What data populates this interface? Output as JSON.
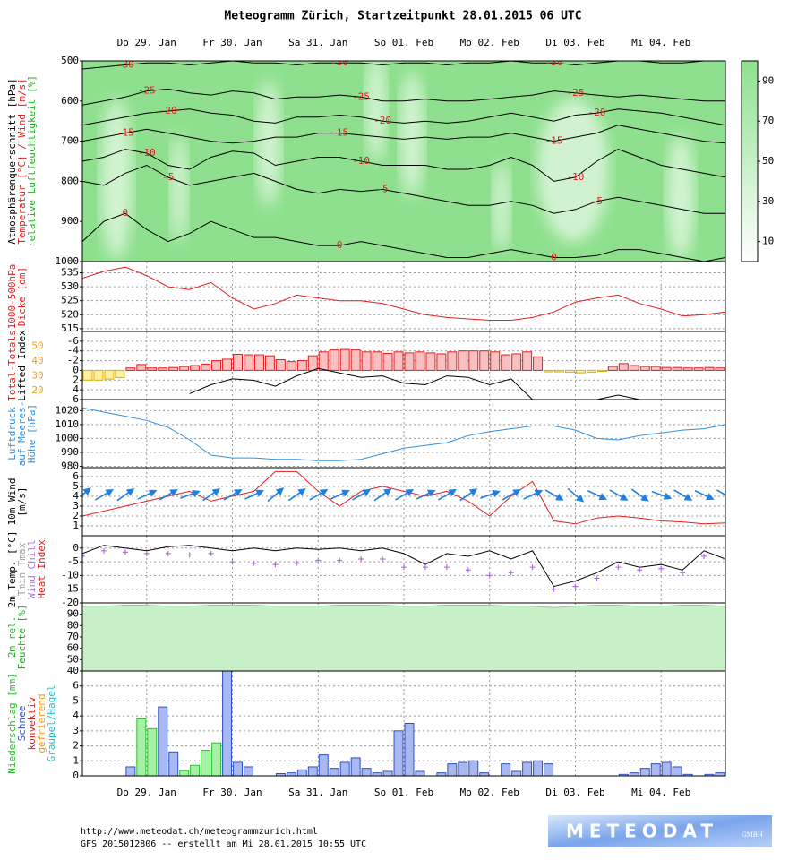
{
  "title": "Meteogramm Zürich, Startzeitpunkt 28.01.2015 06 UTC",
  "footer": {
    "url": "http://www.meteodat.ch/meteogrammzurich.html",
    "info": "GFS 2015012806 -- erstellt am Mi 28.01.2015 10:55 UTC"
  },
  "logo": {
    "text": "METEODAT",
    "sub": "GMBH"
  },
  "time_axis": {
    "xlim": [
      0,
      180
    ],
    "xticks": [
      {
        "value": 18,
        "label": "Do 29. Jan"
      },
      {
        "value": 42,
        "label": "Fr 30. Jan"
      },
      {
        "value": 66,
        "label": "Sa 31. Jan"
      },
      {
        "value": 90,
        "label": "So 01. Feb"
      },
      {
        "value": 114,
        "label": "Mo 02. Feb"
      },
      {
        "value": 138,
        "label": "Di 03. Feb"
      },
      {
        "value": 162,
        "label": "Mi 04. Feb"
      }
    ],
    "x": [
      0,
      6,
      12,
      18,
      24,
      30,
      36,
      42,
      48,
      54,
      60,
      66,
      72,
      78,
      84,
      90,
      96,
      102,
      108,
      114,
      120,
      126,
      132,
      138,
      144,
      150,
      156,
      162,
      168,
      174,
      180
    ],
    "bins": [
      0,
      3,
      6,
      9,
      12,
      15,
      18,
      21,
      24,
      27,
      30,
      33,
      36,
      39,
      42,
      45,
      48,
      51,
      54,
      57,
      60,
      63,
      66,
      69,
      72,
      75,
      78,
      81,
      84,
      87,
      90,
      93,
      96,
      99,
      102,
      105,
      108,
      111,
      114,
      117,
      120,
      123,
      126,
      129,
      132,
      135,
      138,
      141,
      144,
      147,
      150,
      153,
      156,
      159,
      162,
      165,
      168,
      171,
      174,
      177,
      180
    ]
  },
  "chart_data": [
    {
      "type": "contour",
      "bg_color": "#8ee08e",
      "line_color": "#000000",
      "label_color": "#e02020",
      "axis_labels": [
        {
          "text": "Atmosphärenquerschnitt [hPa]",
          "color": "#000000"
        },
        {
          "text": "Temperatur [°C] / Wind [m/s]",
          "color": "#e02020"
        },
        {
          "text": "relative Luftfeuchtigkeit [%]",
          "color": "#20b020"
        }
      ],
      "ylim": [
        1000,
        500
      ],
      "yticks": [
        500,
        600,
        700,
        800,
        900,
        1000
      ],
      "colorbar": {
        "lim": [
          0,
          100
        ],
        "ticks": [
          10,
          30,
          50,
          70,
          90
        ],
        "colors": [
          "#ffffff",
          "#8ee08e"
        ]
      },
      "series": [
        {
          "name": "-30",
          "values": [
            520,
            515,
            510,
            505,
            505,
            510,
            505,
            500,
            505,
            505,
            510,
            505,
            505,
            505,
            510,
            505,
            505,
            510,
            505,
            505,
            500,
            505,
            505,
            510,
            505,
            500,
            500,
            505,
            505,
            500,
            500
          ]
        },
        {
          "name": "-25",
          "values": [
            610,
            600,
            590,
            575,
            570,
            580,
            585,
            575,
            580,
            595,
            590,
            590,
            585,
            590,
            600,
            600,
            595,
            600,
            600,
            595,
            590,
            585,
            575,
            580,
            585,
            590,
            585,
            590,
            595,
            600,
            600
          ]
        },
        {
          "name": "-20",
          "values": [
            660,
            650,
            640,
            630,
            625,
            620,
            630,
            635,
            650,
            655,
            640,
            640,
            635,
            640,
            650,
            655,
            650,
            655,
            650,
            640,
            630,
            640,
            650,
            635,
            630,
            620,
            625,
            630,
            640,
            650,
            660
          ]
        },
        {
          "name": "-15",
          "values": [
            700,
            690,
            680,
            670,
            680,
            690,
            700,
            705,
            700,
            690,
            690,
            680,
            680,
            685,
            690,
            695,
            690,
            695,
            690,
            690,
            680,
            690,
            700,
            690,
            680,
            660,
            670,
            680,
            690,
            700,
            705
          ]
        },
        {
          "name": "-10",
          "values": [
            750,
            740,
            720,
            730,
            760,
            770,
            740,
            725,
            730,
            760,
            750,
            740,
            740,
            750,
            760,
            760,
            760,
            770,
            770,
            760,
            740,
            760,
            800,
            790,
            750,
            720,
            740,
            760,
            770,
            780,
            790
          ]
        },
        {
          "name": "-5",
          "values": [
            800,
            810,
            780,
            760,
            790,
            810,
            800,
            790,
            780,
            800,
            820,
            830,
            820,
            825,
            820,
            830,
            840,
            850,
            860,
            860,
            850,
            860,
            880,
            870,
            850,
            840,
            850,
            860,
            870,
            880,
            880
          ]
        },
        {
          "name": "0",
          "values": [
            950,
            900,
            880,
            920,
            950,
            930,
            900,
            920,
            940,
            940,
            950,
            960,
            960,
            950,
            960,
            970,
            980,
            990,
            990,
            980,
            970,
            980,
            990,
            990,
            985,
            970,
            970,
            980,
            990,
            1000,
            990
          ]
        }
      ]
    },
    {
      "type": "line",
      "axis_labels": [
        {
          "text": "1000-500hPa",
          "color": "#e02020"
        },
        {
          "text": "Dicke [dm]",
          "color": "#e02020"
        }
      ],
      "ylim": [
        514,
        539
      ],
      "yticks": [
        515,
        520,
        525,
        530,
        535
      ],
      "grid": true,
      "series": [
        {
          "style": "line",
          "color": "#e02020",
          "values": [
            533,
            535.5,
            537,
            534,
            530,
            529,
            531.5,
            526,
            522,
            524,
            527,
            526,
            525,
            525,
            524,
            522,
            520,
            519,
            518.5,
            518,
            518,
            519,
            521,
            524.5,
            526,
            527,
            524,
            522,
            519.5,
            520,
            521
          ]
        }
      ]
    },
    {
      "type": "bar",
      "axis_labels": [
        {
          "text": "Total-Totals",
          "color": "#e02020"
        },
        {
          "text": "Lifted Index",
          "color": "#000000"
        }
      ],
      "ylim": [
        6,
        -8
      ],
      "yticks": [
        -6,
        -4,
        -2,
        0,
        2,
        4,
        6
      ],
      "grid": true,
      "colors": {
        "negative": "#f8c0c0",
        "negative_edge": "#e02020",
        "positive": "#fff0a0",
        "positive_edge": "#e0b000"
      },
      "values": [
        2,
        2,
        1.8,
        1.5,
        -0.5,
        -1.2,
        -0.5,
        -0.5,
        -0.6,
        -0.8,
        -1,
        -1.3,
        -2,
        -2.3,
        -3.3,
        -3.2,
        -3.2,
        -3,
        -2.2,
        -1.8,
        -2,
        -3,
        -3.8,
        -4.2,
        -4.3,
        -4.2,
        -3.8,
        -3.8,
        -3.5,
        -3.8,
        -3.6,
        -3.8,
        -3.6,
        -3.4,
        -3.8,
        -4,
        -4,
        -4,
        -3.8,
        -3.2,
        -3.4,
        -3.8,
        -2.8,
        0.3,
        0.3,
        0.4,
        0.5,
        0.4,
        0.2,
        -0.8,
        -1.4,
        -1,
        -0.8,
        -0.8,
        -0.6,
        -0.6,
        -0.5,
        -0.5,
        -0.6,
        -0.5
      ],
      "y2lim": [
        14,
        60
      ],
      "y2ticks": [
        20,
        30,
        40,
        50
      ],
      "y2tick_color": "#f0a020",
      "series": [
        {
          "style": "line",
          "axis": "y2",
          "color": "#000000",
          "values": [
            null,
            null,
            null,
            null,
            null,
            18,
            24,
            28,
            27,
            23,
            30,
            35,
            32,
            29,
            30,
            25,
            24,
            30,
            29,
            24,
            28,
            14,
            null,
            null,
            14,
            17,
            14,
            null,
            null,
            null,
            null
          ]
        }
      ]
    },
    {
      "type": "line",
      "axis_labels": [
        {
          "text": "Luftdruck",
          "color": "#3090e0"
        },
        {
          "text": "auf Meeres-",
          "color": "#3090e0"
        },
        {
          "text": "Höhe [hPa]",
          "color": "#3090e0"
        }
      ],
      "ylim": [
        979,
        1028
      ],
      "yticks": [
        980,
        990,
        1000,
        1010,
        1020
      ],
      "grid": true,
      "series": [
        {
          "style": "line",
          "color": "#3090e0",
          "values": [
            1022,
            1019,
            1016,
            1013,
            1008,
            999,
            988,
            986,
            986,
            985,
            985,
            984,
            984,
            985,
            989,
            993,
            995,
            997,
            1002,
            1005,
            1007,
            1009,
            1009,
            1006,
            1000,
            999,
            1002,
            1004,
            1006,
            1007,
            1010
          ]
        }
      ]
    },
    {
      "type": "line",
      "axis_labels": [
        {
          "text": "10m Wind",
          "color": "#000000"
        },
        {
          "text": "[m/s]",
          "color": "#000000"
        }
      ],
      "ylim": [
        0,
        6.9
      ],
      "yticks": [
        1,
        2,
        3,
        4,
        5,
        6
      ],
      "grid": true,
      "series": [
        {
          "style": "line",
          "color": "#e02020",
          "values": [
            2,
            2.5,
            3,
            3.5,
            4,
            4.5,
            3.5,
            4,
            4.5,
            6.5,
            6.5,
            4.5,
            3,
            4.5,
            5,
            4.5,
            4,
            4.5,
            3.5,
            2,
            4,
            5.5,
            1.5,
            1.2,
            1.8,
            2,
            1.8,
            1.5,
            1.4,
            1.2,
            1.3
          ]
        }
      ],
      "directions": [
        230,
        240,
        235,
        245,
        240,
        250,
        235,
        240,
        245,
        230,
        235,
        240,
        245,
        240,
        235,
        240,
        245,
        240,
        235,
        250,
        240,
        245,
        300,
        310,
        295,
        300,
        305,
        290,
        300,
        295,
        300
      ],
      "arrow_color": "#2080e0"
    },
    {
      "type": "line",
      "axis_labels": [
        {
          "text": "2m Temp. [°C]",
          "color": "#000000"
        },
        {
          "text": "Tmin Tmax",
          "color": "#a0a0a0"
        },
        {
          "text": "Wind Chill",
          "color": "#b070e0"
        },
        {
          "text": "Heat Index",
          "color": "#e02020"
        }
      ],
      "ylim": [
        -20,
        4.5
      ],
      "yticks": [
        0,
        -5,
        -10,
        -15,
        -20
      ],
      "grid": true,
      "series": [
        {
          "style": "line",
          "color": "#000000",
          "values": [
            -2,
            1,
            0,
            -1,
            0.5,
            1,
            0,
            -1,
            0,
            -1,
            0,
            -0.5,
            0,
            -1,
            0,
            -2,
            -6,
            -2,
            -3,
            -1,
            -4,
            -1,
            -14,
            -12,
            -9,
            -5,
            -7,
            -6,
            -8,
            -1,
            -4
          ]
        },
        {
          "style": "cross",
          "color": "#b070e0",
          "values": [
            -3,
            -1,
            -1.5,
            -2,
            -2,
            -2.5,
            -2,
            -5,
            -5.5,
            -6,
            -5.5,
            -4.5,
            -4.5,
            -4,
            -4,
            -7,
            -7,
            -7,
            -8,
            -10,
            -9,
            -7,
            -15,
            -14,
            -11,
            -7,
            -8,
            -7.5,
            -9,
            -3,
            -4
          ]
        }
      ]
    },
    {
      "type": "line",
      "axis_labels": [
        {
          "text": "2m rel.",
          "color": "#20b020"
        },
        {
          "text": "Feuchte [%]",
          "color": "#20b020"
        }
      ],
      "ylim": [
        40,
        100
      ],
      "yticks": [
        90,
        80,
        70,
        60,
        50,
        40
      ],
      "grid": true,
      "series": [
        {
          "style": "area",
          "color": "#c8f0c8",
          "edge": "#90c890",
          "values": [
            97,
            97,
            98,
            98,
            97,
            97,
            98,
            98,
            98,
            97,
            97,
            97,
            98,
            98,
            98,
            97,
            97,
            98,
            98,
            98,
            97,
            97,
            96,
            97,
            98,
            98,
            97,
            97,
            98,
            98,
            97
          ]
        }
      ]
    },
    {
      "type": "bar",
      "axis_labels": [
        {
          "text": "Niederschlag [mm]",
          "color": "#20c020"
        },
        {
          "text": "Schnee",
          "color": "#3050d0"
        },
        {
          "text": "konvektiv",
          "color": "#e02020"
        },
        {
          "text": "gefrierend",
          "color": "#f0a020"
        },
        {
          "text": "Graupel/Hagel",
          "color": "#20c0d0"
        }
      ],
      "ylim": [
        0,
        7
      ],
      "yticks": [
        0,
        1,
        2,
        3,
        4,
        5,
        6
      ],
      "grid": true,
      "series": [
        {
          "style": "bar",
          "color": "#a8f0a8",
          "edge": "#30c030",
          "values": [
            0,
            0,
            0,
            0,
            0,
            3.8,
            3.15,
            0,
            0,
            0.35,
            0.7,
            1.7,
            2.2,
            0,
            0,
            0,
            0,
            0,
            0,
            0,
            0,
            0,
            0,
            0,
            0,
            0,
            0,
            0,
            0,
            0,
            0,
            0,
            0,
            0,
            0,
            0,
            0,
            0,
            0,
            0,
            0,
            0,
            0,
            0,
            0,
            0,
            0,
            0,
            0,
            0,
            0,
            0,
            0,
            0,
            0,
            0,
            0,
            0,
            0,
            0
          ]
        },
        {
          "style": "bar",
          "color": "#a8b8f0",
          "edge": "#3050c0",
          "values": [
            0,
            0,
            0,
            0,
            0.6,
            0,
            0,
            4.6,
            1.6,
            0,
            0,
            0,
            0,
            7.5,
            0.9,
            0.6,
            0,
            0,
            0.15,
            0.2,
            0.4,
            0.6,
            1.4,
            0.5,
            0.9,
            1.2,
            0.5,
            0.2,
            0.3,
            3,
            3.5,
            0.3,
            0,
            0.2,
            0.8,
            0.9,
            1,
            0.2,
            0,
            0.8,
            0.3,
            0.9,
            1,
            0.8,
            0,
            0,
            0,
            0,
            0,
            0,
            0.1,
            0.2,
            0.5,
            0.8,
            0.9,
            0.6,
            0.1,
            0,
            0.1,
            0.2
          ]
        }
      ]
    }
  ]
}
